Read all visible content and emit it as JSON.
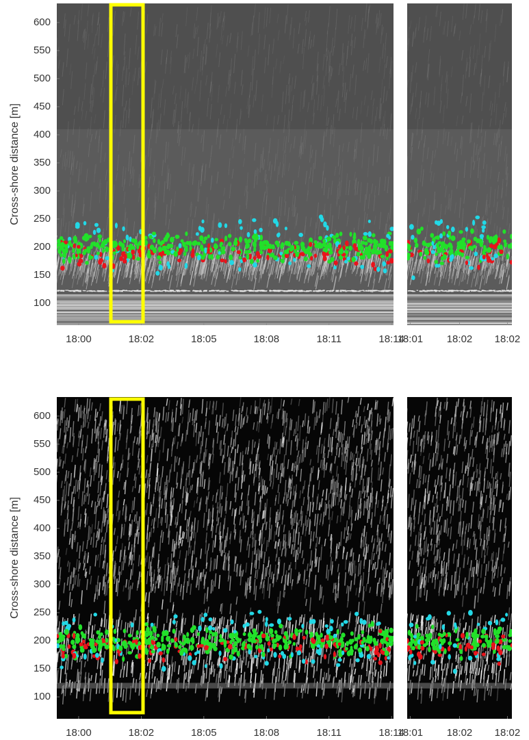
{
  "chart_data": [
    {
      "type": "timestack",
      "ylabel": "Cross-shore distance [m]",
      "background": "#5b5b5b",
      "xlim": [
        -1.03,
        14.84
      ],
      "ylim": [
        61,
        634
      ],
      "xticks": [
        {
          "value": 0,
          "label": "18:00"
        },
        {
          "value": 2.95,
          "label": "18:02"
        },
        {
          "value": 5.9,
          "label": "18:05"
        },
        {
          "value": 8.85,
          "label": "18:08"
        },
        {
          "value": 11.8,
          "label": "18:11"
        },
        {
          "value": 14.75,
          "label": "18:14"
        }
      ],
      "yticks": [
        100,
        150,
        200,
        250,
        300,
        350,
        400,
        450,
        500,
        550,
        600
      ]
    },
    {
      "type": "timestack",
      "background": "#5b5b5b",
      "xlim": [
        1.8,
        2.5
      ],
      "ylim": [
        61,
        634
      ],
      "xticks": [
        {
          "value": 1.82,
          "label": "18:01"
        },
        {
          "value": 2.15,
          "label": "18:02"
        },
        {
          "value": 2.47,
          "label": "18:02"
        }
      ]
    },
    {
      "type": "timestack",
      "ylabel": "Cross-shore distance [m]",
      "background": "#060606",
      "xlim": [
        -1.03,
        14.84
      ],
      "ylim": [
        61,
        634
      ],
      "xticks": [
        {
          "value": 0,
          "label": "18:00"
        },
        {
          "value": 2.95,
          "label": "18:02"
        },
        {
          "value": 5.9,
          "label": "18:05"
        },
        {
          "value": 8.85,
          "label": "18:08"
        },
        {
          "value": 11.8,
          "label": "18:11"
        },
        {
          "value": 14.75,
          "label": "18:14"
        }
      ],
      "yticks": [
        100,
        150,
        200,
        250,
        300,
        350,
        400,
        450,
        500,
        550,
        600
      ]
    },
    {
      "type": "timestack",
      "background": "#060606",
      "xlim": [
        1.8,
        2.5
      ],
      "ylim": [
        61,
        634
      ],
      "xticks": [
        {
          "value": 1.82,
          "label": "18:01"
        },
        {
          "value": 2.15,
          "label": "18:02"
        },
        {
          "value": 2.47,
          "label": "18:02"
        }
      ]
    }
  ]
}
